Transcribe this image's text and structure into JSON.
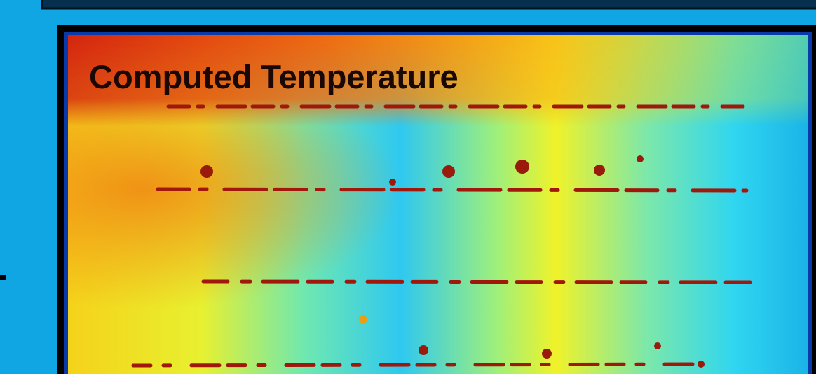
{
  "image": {
    "title": "Computed Temperature"
  }
}
